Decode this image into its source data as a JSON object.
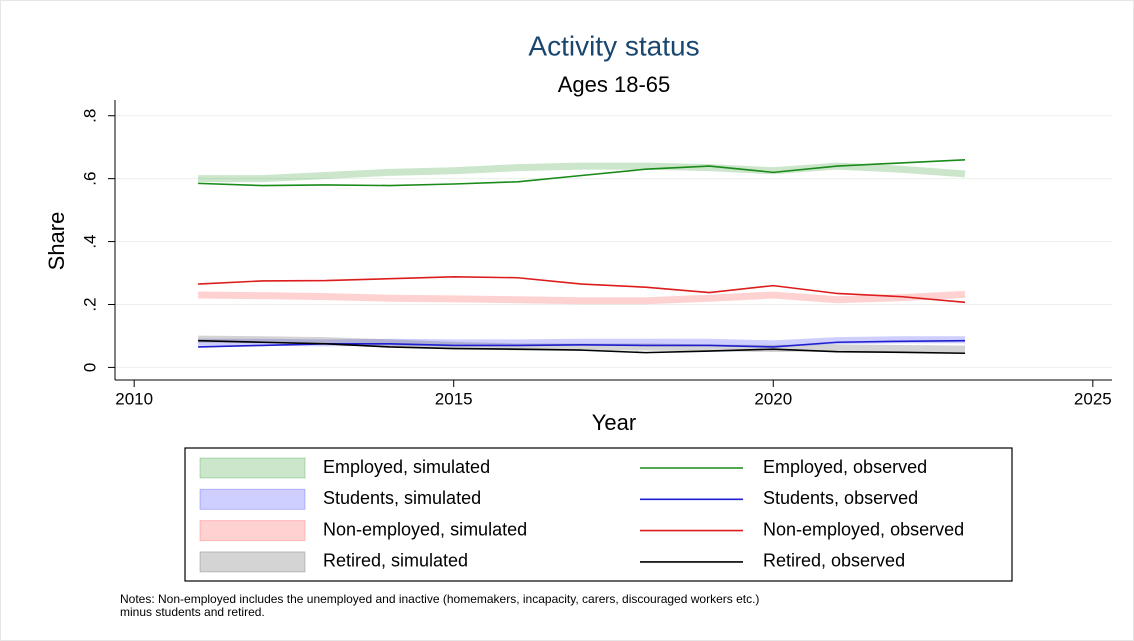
{
  "chart_data": {
    "type": "line",
    "title": "Activity status",
    "subtitle": "Ages 18-65",
    "xlabel": "Year",
    "ylabel": "Share",
    "x": [
      2011,
      2012,
      2013,
      2014,
      2015,
      2016,
      2017,
      2018,
      2019,
      2020,
      2021,
      2022,
      2023
    ],
    "series": [
      {
        "name": "Employed, simulated",
        "color": "#2e9a2e",
        "kind": "band",
        "values": [
          0.6,
          0.6,
          0.61,
          0.62,
          0.625,
          0.635,
          0.64,
          0.64,
          0.635,
          0.625,
          0.64,
          0.63,
          0.615
        ]
      },
      {
        "name": "Students, simulated",
        "color": "#3a3aff",
        "kind": "band",
        "values": [
          0.08,
          0.08,
          0.078,
          0.08,
          0.078,
          0.078,
          0.08,
          0.08,
          0.08,
          0.075,
          0.085,
          0.088,
          0.088
        ]
      },
      {
        "name": "Non-employed, simulated",
        "color": "#ff4a4a",
        "kind": "band",
        "values": [
          0.23,
          0.228,
          0.225,
          0.22,
          0.218,
          0.215,
          0.212,
          0.212,
          0.22,
          0.23,
          0.215,
          0.222,
          0.232
        ]
      },
      {
        "name": "Retired, simulated",
        "color": "#555555",
        "kind": "band",
        "values": [
          0.09,
          0.088,
          0.085,
          0.078,
          0.07,
          0.065,
          0.065,
          0.065,
          0.062,
          0.06,
          0.062,
          0.06,
          0.058
        ]
      },
      {
        "name": "Employed, observed",
        "color": "#1a8a1a",
        "kind": "line",
        "values": [
          0.585,
          0.578,
          0.58,
          0.578,
          0.583,
          0.59,
          0.61,
          0.63,
          0.64,
          0.62,
          0.64,
          0.65,
          0.66
        ]
      },
      {
        "name": "Students, observed",
        "color": "#1f1fd0",
        "kind": "line",
        "values": [
          0.065,
          0.07,
          0.075,
          0.075,
          0.07,
          0.07,
          0.072,
          0.07,
          0.07,
          0.065,
          0.08,
          0.083,
          0.085
        ]
      },
      {
        "name": "Non-employed, observed",
        "color": "#dd1c1c",
        "kind": "line",
        "values": [
          0.265,
          0.275,
          0.276,
          0.282,
          0.288,
          0.285,
          0.265,
          0.255,
          0.238,
          0.26,
          0.235,
          0.225,
          0.207
        ]
      },
      {
        "name": "Retired, observed",
        "color": "#000000",
        "kind": "line",
        "values": [
          0.085,
          0.08,
          0.075,
          0.065,
          0.06,
          0.058,
          0.055,
          0.047,
          0.052,
          0.058,
          0.05,
          0.048,
          0.045
        ]
      }
    ],
    "xlim": [
      2009.7,
      2025.3
    ],
    "xticks": [
      2010,
      2015,
      2020,
      2025
    ],
    "ylim": [
      -0.04,
      0.85
    ],
    "yticks": [
      {
        "value": 0,
        "label": "0"
      },
      {
        "value": 0.2,
        "label": ".2"
      },
      {
        "value": 0.4,
        "label": ".4"
      },
      {
        "value": 0.6,
        "label": ".6"
      },
      {
        "value": 0.8,
        "label": ".8"
      }
    ],
    "grid": true,
    "notes": [
      "Notes: Non-employed includes the unemployed and inactive (homemakers, incapacity, carers, discouraged workers etc.)",
      "minus students and retired."
    ]
  }
}
